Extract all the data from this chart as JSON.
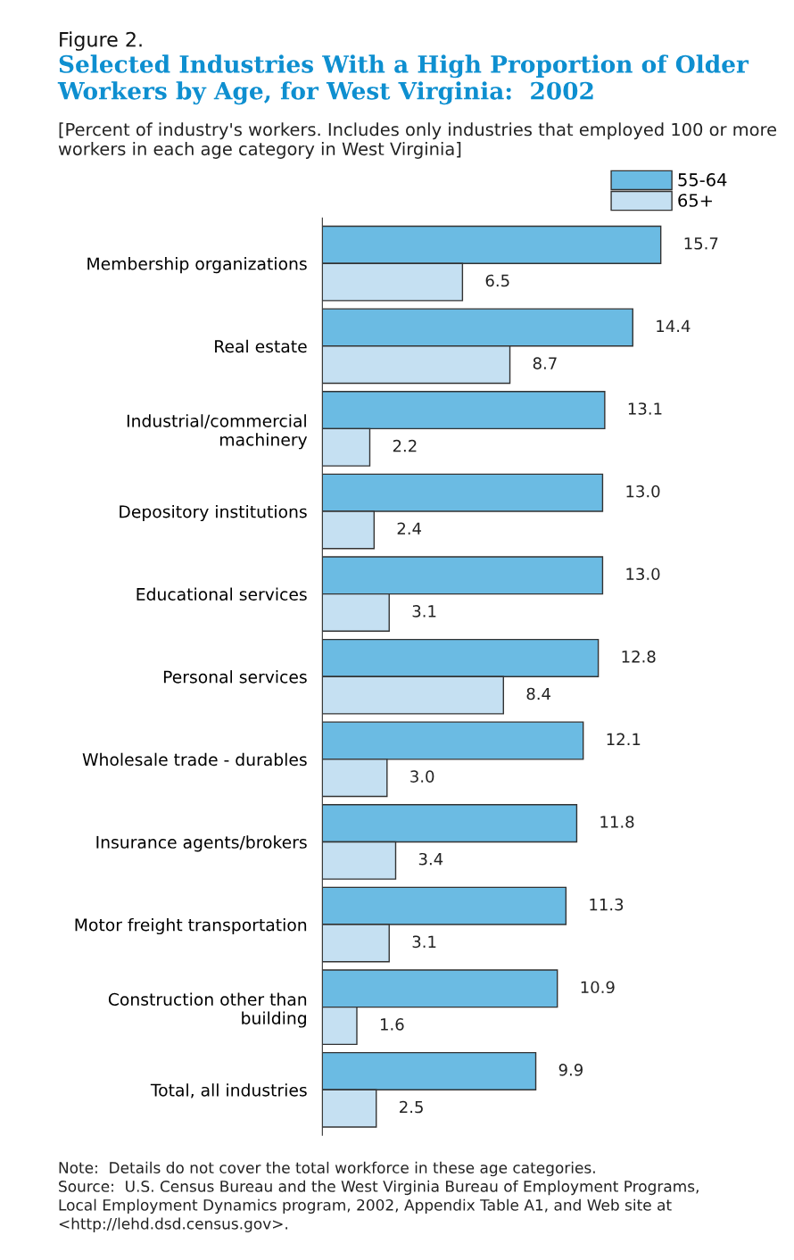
{
  "chart_data": {
    "type": "bar",
    "orientation": "horizontal",
    "title": "Selected Industries With a High Proportion of Older Workers by Age, for West Virginia:  2002",
    "subtitle": "[Percent of industry's workers. Includes only industries that employed 100 or more workers in each age category in West Virginia]",
    "categories": [
      "Membership organizations",
      "Real estate",
      "Industrial/commercial\nmachinery",
      "Depository institutions",
      "Educational services",
      "Personal services",
      "Wholesale trade - durables",
      "Insurance agents/brokers",
      "Motor freight transportation",
      "Construction other than\nbuilding",
      "Total, all industries"
    ],
    "series": [
      {
        "name": "55-64",
        "color": "#6bbbe3",
        "values": [
          15.7,
          14.4,
          13.1,
          13.0,
          13.0,
          12.8,
          12.1,
          11.8,
          11.3,
          10.9,
          9.9
        ],
        "value_labels": [
          "15.7",
          "14.4",
          "13.1",
          "13.0",
          "13.0",
          "12.8",
          "12.1",
          "11.8",
          "11.3",
          "10.9",
          "9.9"
        ]
      },
      {
        "name": "65+",
        "color": "#c5e0f2",
        "values": [
          6.5,
          8.7,
          2.2,
          2.4,
          3.1,
          8.4,
          3.0,
          3.4,
          3.1,
          1.6,
          2.5
        ],
        "value_labels": [
          "6.5",
          "8.7",
          "2.2",
          "2.4",
          "3.1",
          "8.4",
          "3.0",
          "3.4",
          "3.1",
          "1.6",
          "2.5"
        ]
      }
    ],
    "legend": "top right",
    "grid": false,
    "annotations": [
      "Figure 2.",
      "Note:  Details do not cover the total workforce in these age categories.\nSource:  U.S. Census Bureau and the West Virginia Bureau of Employment Programs,\nLocal Employment Dynamics program, 2002, Appendix Table A1, and Web site at\n<http://lehd.dsd.census.gov>."
    ]
  }
}
